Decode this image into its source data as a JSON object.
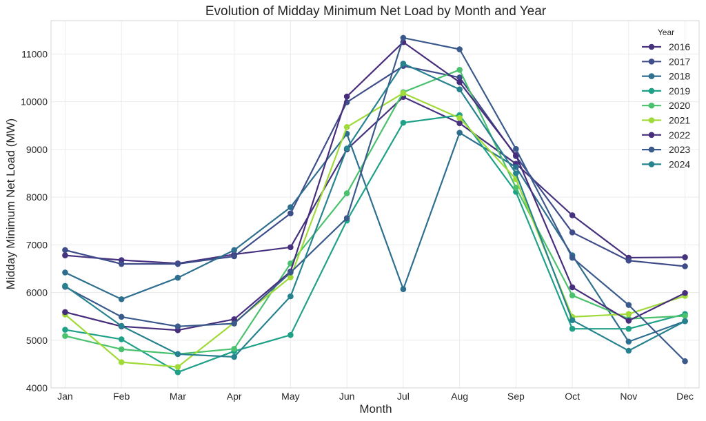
{
  "chart_data": {
    "type": "line",
    "title": "Evolution of Midday Minimum Net Load by Month and Year",
    "xlabel": "Month",
    "ylabel": "Midday Minimum Net Load (MW)",
    "categories": [
      "Jan",
      "Feb",
      "Mar",
      "Apr",
      "May",
      "Jun",
      "Jul",
      "Aug",
      "Sep",
      "Oct",
      "Nov",
      "Dec"
    ],
    "ylim": [
      4000,
      11700
    ],
    "yticks": [
      4000,
      5000,
      6000,
      7000,
      8000,
      9000,
      10000,
      11000
    ],
    "grid": true,
    "legend_title": "Year",
    "legend_position": "top-right",
    "series": [
      {
        "name": "2016",
        "color": "#46327e",
        "values": [
          6780,
          6680,
          6610,
          6800,
          6950,
          9000,
          10100,
          9550,
          8700,
          7620,
          6730,
          6740
        ]
      },
      {
        "name": "2017",
        "color": "#3e4c8a",
        "values": [
          6890,
          6600,
          6600,
          6760,
          7660,
          9990,
          10750,
          10510,
          8860,
          7260,
          6670,
          6550
        ]
      },
      {
        "name": "2018",
        "color": "#2e6e8e",
        "values": [
          6420,
          5860,
          6310,
          6890,
          7790,
          9330,
          6070,
          9350,
          8630,
          6780,
          4970,
          5400
        ]
      },
      {
        "name": "2019",
        "color": "#1fa188",
        "values": [
          5220,
          5020,
          4330,
          4770,
          5110,
          7510,
          9560,
          9720,
          8110,
          5240,
          5240,
          5550
        ]
      },
      {
        "name": "2020",
        "color": "#4ac16d",
        "values": [
          5090,
          4810,
          4710,
          4820,
          6610,
          8080,
          10200,
          10670,
          8200,
          5940,
          5450,
          5510
        ]
      },
      {
        "name": "2021",
        "color": "#a0da39",
        "values": [
          5540,
          4540,
          4440,
          5370,
          6320,
          9470,
          10180,
          9660,
          8380,
          5490,
          5550,
          5930
        ]
      },
      {
        "name": "2022",
        "color": "#472d7b",
        "values": [
          5590,
          5290,
          5210,
          5440,
          6440,
          10110,
          11250,
          10410,
          8880,
          6110,
          5410,
          5990
        ]
      },
      {
        "name": "2023",
        "color": "#3b5a8c",
        "values": [
          6120,
          5490,
          5290,
          5350,
          6420,
          7560,
          11340,
          11100,
          9010,
          6730,
          5740,
          4560
        ]
      },
      {
        "name": "2024",
        "color": "#26828e",
        "values": [
          6140,
          5300,
          4710,
          4650,
          5920,
          9020,
          10800,
          10260,
          8500,
          5420,
          4780,
          5400
        ]
      }
    ]
  }
}
